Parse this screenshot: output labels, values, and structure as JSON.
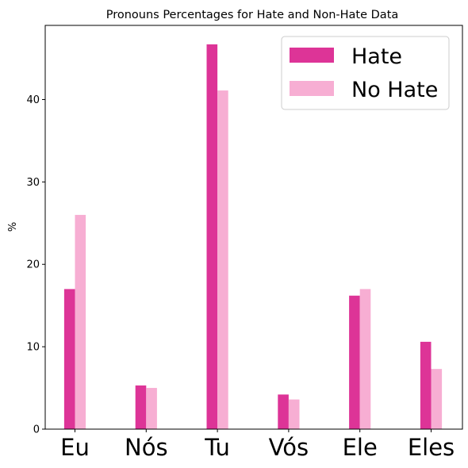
{
  "chart_data": {
    "type": "bar",
    "title": "Pronouns Percentages for Hate and Non-Hate Data",
    "xlabel": "",
    "ylabel": "%",
    "categories": [
      "Eu",
      "Nós",
      "Tu",
      "Vós",
      "Ele",
      "Eles"
    ],
    "series": [
      {
        "name": "Hate",
        "color": "#dd3497",
        "values": [
          17.0,
          5.3,
          46.7,
          4.2,
          16.2,
          10.6
        ]
      },
      {
        "name": "No Hate",
        "color": "#f7aed3",
        "values": [
          26.0,
          5.0,
          41.1,
          3.6,
          17.0,
          7.3
        ]
      }
    ],
    "ylim": [
      0,
      49
    ],
    "yticks": [
      0,
      10,
      20,
      30,
      40
    ],
    "grid": false,
    "legend_position": "top-right"
  }
}
